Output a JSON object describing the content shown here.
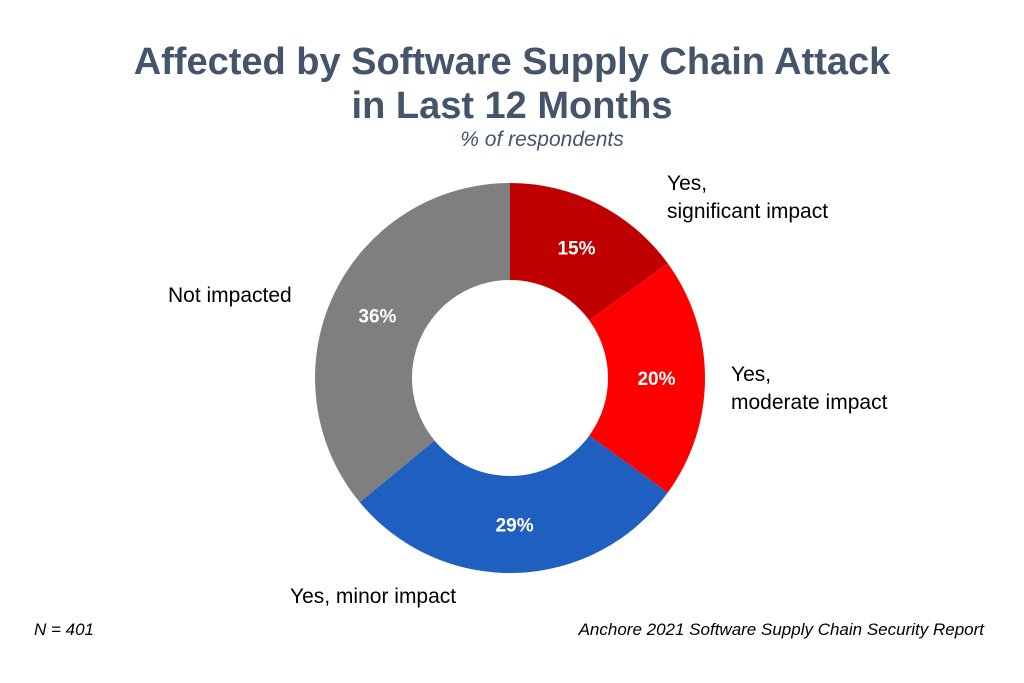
{
  "chart_data": {
    "type": "pie",
    "title_line1": "Affected by Software Supply Chain Attack",
    "title_line2": "in Last 12 Months",
    "subtitle": "% of respondents",
    "unit": "%",
    "donut": true,
    "slices": [
      {
        "label_lines": [
          "Yes,",
          "significant impact"
        ],
        "value": 15,
        "display": "15%",
        "color": "#c00000"
      },
      {
        "label_lines": [
          "Yes,",
          "moderate impact"
        ],
        "value": 20,
        "display": "20%",
        "color": "#ff0000"
      },
      {
        "label_lines": [
          "Yes, minor impact"
        ],
        "value": 29,
        "display": "29%",
        "color": "#1f5fbf"
      },
      {
        "label_lines": [
          "Not impacted"
        ],
        "value": 36,
        "display": "36%",
        "color": "#7f7f7f"
      }
    ]
  },
  "footer": {
    "sample_size": "N = 401",
    "source": "Anchore 2021 Software Supply Chain Security Report"
  }
}
